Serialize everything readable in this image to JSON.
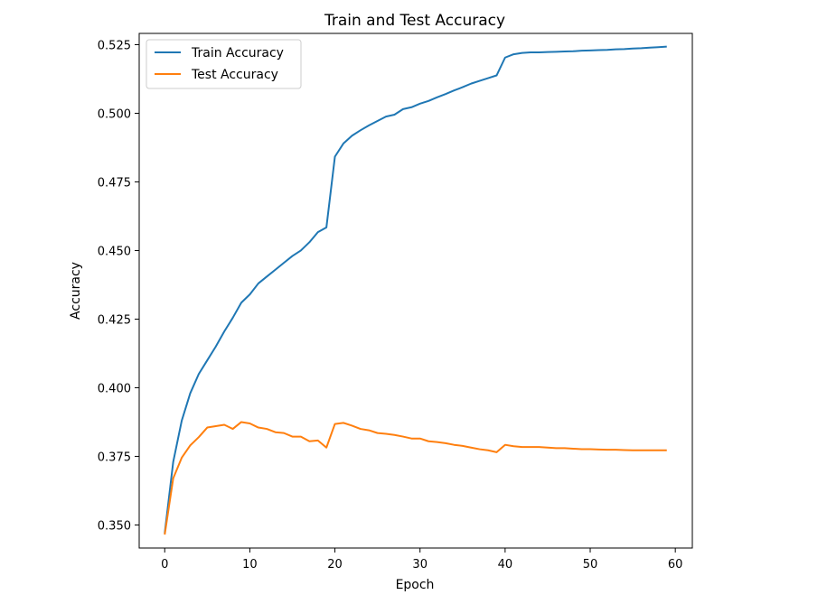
{
  "chart_data": {
    "type": "line",
    "title": "Train and Test Accuracy",
    "xlabel": "Epoch",
    "ylabel": "Accuracy",
    "xlim": [
      -3,
      62
    ],
    "ylim": [
      0.3416,
      0.5291
    ],
    "x_ticks": [
      0,
      10,
      20,
      30,
      40,
      50,
      60
    ],
    "y_ticks": [
      0.35,
      0.375,
      0.4,
      0.425,
      0.45,
      0.475,
      0.5,
      0.525
    ],
    "y_tick_labels": [
      "0.350",
      "0.375",
      "0.400",
      "0.425",
      "0.450",
      "0.475",
      "0.500",
      "0.525"
    ],
    "x_tick_labels": [
      "0",
      "10",
      "20",
      "30",
      "40",
      "50",
      "60"
    ],
    "grid": false,
    "legend": "top-left",
    "x": [
      0,
      1,
      2,
      3,
      4,
      5,
      6,
      7,
      8,
      9,
      10,
      11,
      12,
      13,
      14,
      15,
      16,
      17,
      18,
      19,
      20,
      21,
      22,
      23,
      24,
      25,
      26,
      27,
      28,
      29,
      30,
      31,
      32,
      33,
      34,
      35,
      36,
      37,
      38,
      39,
      40,
      41,
      42,
      43,
      44,
      45,
      46,
      47,
      48,
      49,
      50,
      51,
      52,
      53,
      54,
      55,
      56,
      57,
      58,
      59
    ],
    "series": [
      {
        "name": "Train Accuracy",
        "color": "#1f77b4",
        "values": [
          0.347,
          0.373,
          0.388,
          0.398,
          0.405,
          0.41,
          0.415,
          0.4205,
          0.4255,
          0.431,
          0.434,
          0.438,
          0.4405,
          0.443,
          0.4455,
          0.448,
          0.45,
          0.453,
          0.4567,
          0.4584,
          0.4842,
          0.489,
          0.4918,
          0.4938,
          0.4956,
          0.4972,
          0.4988,
          0.4995,
          0.5015,
          0.5022,
          0.5035,
          0.5045,
          0.5058,
          0.507,
          0.5083,
          0.5095,
          0.5108,
          0.5118,
          0.5128,
          0.5138,
          0.5203,
          0.5215,
          0.522,
          0.5222,
          0.5222,
          0.5223,
          0.5224,
          0.5225,
          0.5226,
          0.5228,
          0.5229,
          0.523,
          0.5231,
          0.5233,
          0.5234,
          0.5236,
          0.5237,
          0.5239,
          0.5241,
          0.5243
        ]
      },
      {
        "name": "Test Accuracy",
        "color": "#ff7f0e",
        "values": [
          0.3465,
          0.367,
          0.3745,
          0.379,
          0.382,
          0.3855,
          0.386,
          0.3865,
          0.385,
          0.3875,
          0.387,
          0.3855,
          0.385,
          0.3838,
          0.3835,
          0.3822,
          0.3822,
          0.3805,
          0.3808,
          0.3782,
          0.3868,
          0.3872,
          0.3862,
          0.385,
          0.3845,
          0.3835,
          0.3832,
          0.3828,
          0.3822,
          0.3815,
          0.3815,
          0.3805,
          0.3802,
          0.3798,
          0.3792,
          0.3788,
          0.3782,
          0.3776,
          0.3772,
          0.3765,
          0.3792,
          0.3787,
          0.3784,
          0.3784,
          0.3784,
          0.3782,
          0.378,
          0.378,
          0.3778,
          0.3776,
          0.3776,
          0.3775,
          0.3774,
          0.3774,
          0.3773,
          0.3772,
          0.3772,
          0.3772,
          0.3772,
          0.3772
        ]
      }
    ]
  }
}
